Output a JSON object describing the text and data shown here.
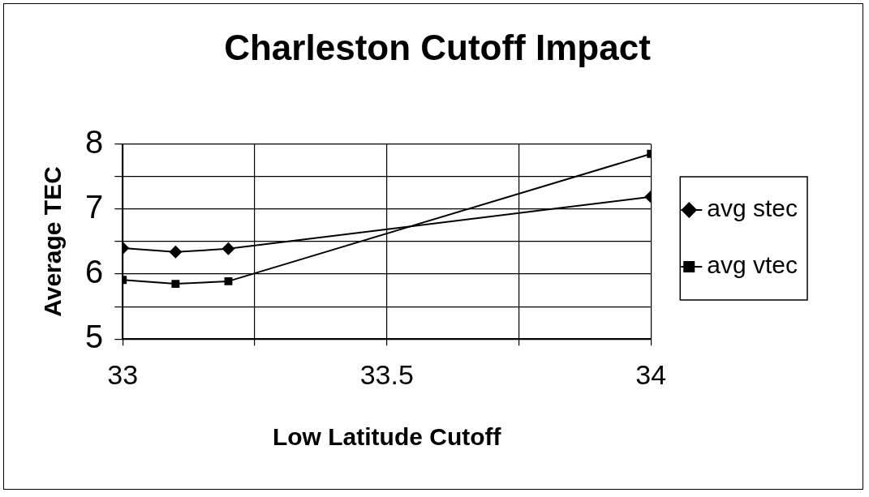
{
  "chart_data": {
    "type": "line",
    "title": "Charleston Cutoff Impact",
    "xlabel": "Low Latitude Cutoff",
    "ylabel": "Average TEC",
    "series": [
      {
        "name": "avg stec",
        "color": "#000000",
        "marker": "diamond",
        "x": [
          33,
          33.1,
          33.2,
          34
        ],
        "values": [
          6.4,
          6.34,
          6.39,
          7.19
        ]
      },
      {
        "name": "avg vtec",
        "color": "#000000",
        "marker": "square",
        "x": [
          33,
          33.1,
          33.2,
          34
        ],
        "values": [
          5.91,
          5.85,
          5.89,
          7.85
        ]
      }
    ],
    "xlim": [
      33,
      34
    ],
    "xticks": [
      33,
      {
        "value": 33.25,
        "label": null
      },
      33.5,
      {
        "value": 33.75,
        "label": null
      },
      34
    ],
    "ylim": [
      5,
      8
    ],
    "yticks": [
      5,
      {
        "value": 5.5,
        "label": null
      },
      6,
      {
        "value": 6.5,
        "label": null
      },
      7,
      {
        "value": 7.5,
        "label": null
      },
      8
    ],
    "grid": true,
    "legend": "right",
    "line_style": "solid"
  }
}
